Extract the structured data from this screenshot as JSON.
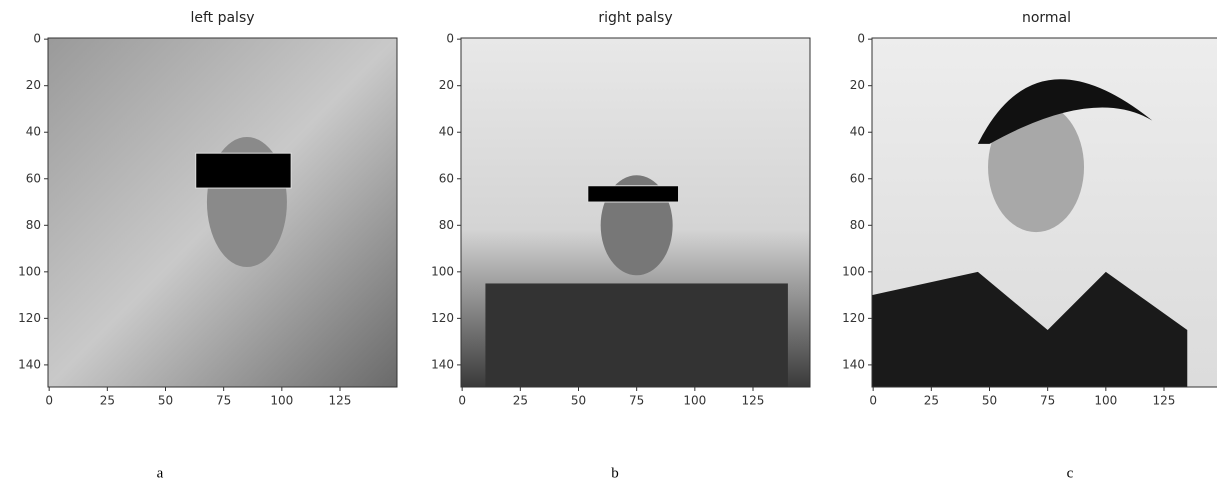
{
  "chart_data": [
    {
      "type": "image",
      "title": "left palsy",
      "caption": "a",
      "xlim": [
        -0.5,
        149.5
      ],
      "ylim": [
        149.5,
        -0.5
      ],
      "xticks": [
        0,
        25,
        50,
        75,
        100,
        125
      ],
      "yticks": [
        0,
        20,
        40,
        60,
        80,
        100,
        120,
        140
      ]
    },
    {
      "type": "image",
      "title": "right palsy",
      "caption": "b",
      "xlim": [
        -0.5,
        149.5
      ],
      "ylim": [
        149.5,
        -0.5
      ],
      "xticks": [
        0,
        25,
        50,
        75,
        100,
        125
      ],
      "yticks": [
        0,
        20,
        40,
        60,
        80,
        100,
        120,
        140
      ]
    },
    {
      "type": "image",
      "title": "normal",
      "caption": "c",
      "xlim": [
        -0.5,
        149.5
      ],
      "ylim": [
        149.5,
        -0.5
      ],
      "xticks": [
        0,
        25,
        50,
        75,
        100,
        125
      ],
      "yticks": [
        0,
        20,
        40,
        60,
        80,
        100,
        120,
        140
      ]
    }
  ]
}
